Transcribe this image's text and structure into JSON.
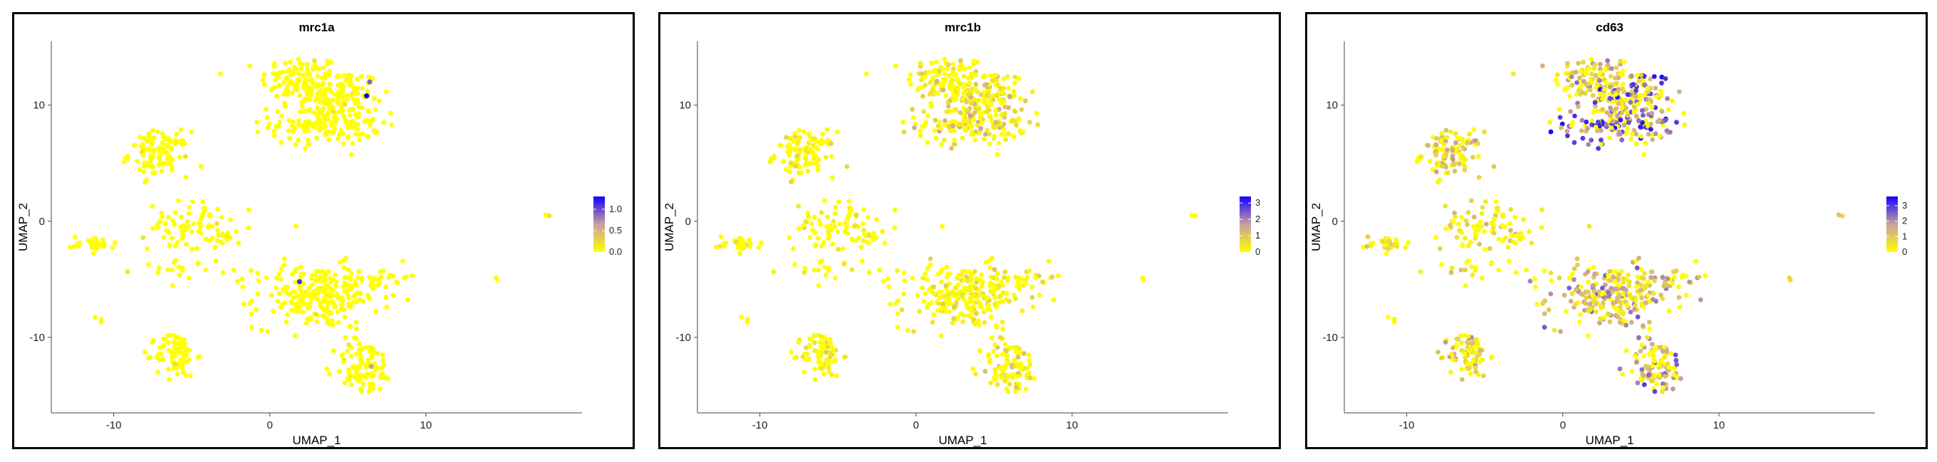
{
  "palette": {
    "low": "#ffff00",
    "mid": "#c8a0a0",
    "high": "#1400ff"
  },
  "shared": {
    "xlabel": "UMAP_1",
    "ylabel": "UMAP_2",
    "xticks": [
      -10,
      0,
      10
    ],
    "yticks": [
      -10,
      0,
      10
    ],
    "xlim": [
      -14,
      20
    ],
    "ylim": [
      -16.5,
      15.5
    ]
  },
  "chart_data": [
    {
      "type": "scatter",
      "title": "mrc1a",
      "colorbar": {
        "ticks": [
          "0.0",
          "0.5",
          "1.0"
        ],
        "tick_values": [
          0,
          0.5,
          1.0
        ],
        "max": 1.3
      },
      "level": 0.02,
      "highlights": [
        {
          "x": 6.2,
          "y": 10.8,
          "v": 1.3
        },
        {
          "x": 6.4,
          "y": 12.0,
          "v": 0.9
        },
        {
          "x": 1.9,
          "y": -5.2,
          "v": 1.1
        },
        {
          "x": 6.5,
          "y": -12.5,
          "v": 0.6
        }
      ]
    },
    {
      "type": "scatter",
      "title": "mrc1b",
      "colorbar": {
        "ticks": [
          "0",
          "1",
          "2",
          "3"
        ],
        "tick_values": [
          0,
          1,
          2,
          3
        ],
        "max": 3.4
      },
      "level": 0.15,
      "highlights": []
    },
    {
      "type": "scatter",
      "title": "cd63",
      "colorbar": {
        "ticks": [
          "0",
          "1",
          "2",
          "3"
        ],
        "tick_values": [
          0,
          1,
          2,
          3
        ],
        "max": 3.6
      },
      "level": 0.45,
      "highlights": []
    }
  ],
  "clusters": [
    {
      "cx": 2.0,
      "cy": 12.2,
      "sx": 1.6,
      "sy": 1.3,
      "n": 110,
      "w": 0.8
    },
    {
      "cx": 4.5,
      "cy": 11.0,
      "sx": 1.6,
      "sy": 1.3,
      "n": 110,
      "w": 1.3
    },
    {
      "cx": 3.6,
      "cy": 8.5,
      "sx": 2.2,
      "sy": 1.2,
      "n": 170,
      "w": 1.7
    },
    {
      "cx": -7.1,
      "cy": 5.8,
      "sx": 1.2,
      "sy": 1.2,
      "n": 110,
      "w": 0.6
    },
    {
      "cx": -11.3,
      "cy": -1.9,
      "sx": 0.9,
      "sy": 0.4,
      "n": 32,
      "w": 0.5
    },
    {
      "cx": -5.2,
      "cy": -0.4,
      "sx": 1.6,
      "sy": 1.3,
      "n": 75,
      "w": 0.5
    },
    {
      "cx": -2.7,
      "cy": -1.4,
      "sx": 0.6,
      "sy": 0.6,
      "n": 12,
      "w": 0.5
    },
    {
      "cx": -5.5,
      "cy": -4.0,
      "sx": 1.8,
      "sy": 0.5,
      "n": 20,
      "w": 0.4
    },
    {
      "cx": 3.0,
      "cy": -6.5,
      "sx": 2.5,
      "sy": 1.7,
      "n": 240,
      "w": 0.9
    },
    {
      "cx": 6.8,
      "cy": -4.8,
      "sx": 1.3,
      "sy": 0.5,
      "n": 30,
      "w": 0.9
    },
    {
      "cx": -6.0,
      "cy": -11.5,
      "sx": 0.8,
      "sy": 1.2,
      "n": 85,
      "w": 0.7
    },
    {
      "cx": 6.0,
      "cy": -12.5,
      "sx": 1.2,
      "sy": 1.5,
      "n": 95,
      "w": 1.0
    },
    {
      "cx": -11.0,
      "cy": -8.5,
      "sx": 0.2,
      "sy": 0.2,
      "n": 3,
      "w": 0.5
    },
    {
      "cx": 1.7,
      "cy": -0.5,
      "sx": 0.1,
      "sy": 0.1,
      "n": 1,
      "w": 0.5
    },
    {
      "cx": 14.5,
      "cy": -5.0,
      "sx": 0.1,
      "sy": 0.1,
      "n": 2,
      "w": 0.5
    },
    {
      "cx": 17.8,
      "cy": 0.5,
      "sx": 0.1,
      "sy": 0.1,
      "n": 2,
      "w": 0.8
    }
  ]
}
